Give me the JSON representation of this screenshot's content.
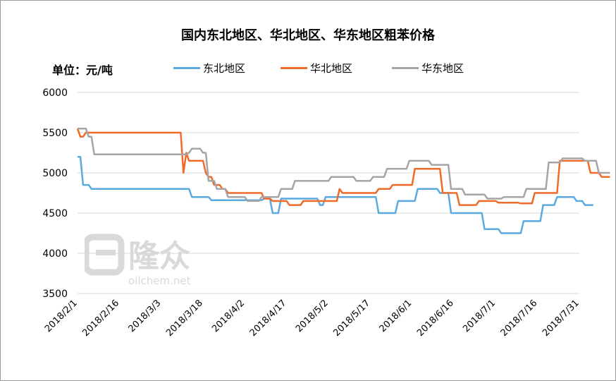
{
  "chart_data": {
    "type": "line",
    "title": "国内东北地区、华北地区、华东地区粗苯价格",
    "unit_label": "单位：元/吨",
    "ylim": [
      3500,
      6000
    ],
    "yticks": [
      3500,
      4000,
      4500,
      5000,
      5500,
      6000
    ],
    "x_tick_labels": [
      "2018/2/1",
      "2018/2/16",
      "2018/3/3",
      "2018/3/18",
      "2018/4/2",
      "2018/4/17",
      "2018/5/2",
      "2018/5/17",
      "2018/6/1",
      "2018/6/16",
      "2018/7/1",
      "2018/7/16",
      "2018/7/31"
    ],
    "x_start": "2018/2/1",
    "x_end": "2018/7/31",
    "grid": "horizontal",
    "legend_position": "top",
    "series": [
      {
        "name": "东北地区",
        "color": "#5aaae0",
        "points": [
          [
            0,
            5200
          ],
          [
            1,
            5200
          ],
          [
            2,
            4850
          ],
          [
            4,
            4850
          ],
          [
            5,
            4800
          ],
          [
            40,
            4800
          ],
          [
            41,
            4700
          ],
          [
            47,
            4700
          ],
          [
            48,
            4660
          ],
          [
            66,
            4660
          ],
          [
            67,
            4680
          ],
          [
            69,
            4680
          ],
          [
            70,
            4500
          ],
          [
            72,
            4500
          ],
          [
            73,
            4680
          ],
          [
            86,
            4680
          ],
          [
            87,
            4600
          ],
          [
            88,
            4600
          ],
          [
            89,
            4700
          ],
          [
            107,
            4700
          ],
          [
            108,
            4500
          ],
          [
            114,
            4500
          ],
          [
            115,
            4650
          ],
          [
            121,
            4650
          ],
          [
            122,
            4800
          ],
          [
            129,
            4800
          ],
          [
            130,
            4750
          ],
          [
            133,
            4750
          ],
          [
            134,
            4500
          ],
          [
            145,
            4500
          ],
          [
            146,
            4300
          ],
          [
            151,
            4300
          ],
          [
            152,
            4250
          ],
          [
            159,
            4250
          ],
          [
            160,
            4400
          ],
          [
            166,
            4400
          ],
          [
            167,
            4600
          ],
          [
            171,
            4600
          ],
          [
            172,
            4700
          ],
          [
            178,
            4700
          ],
          [
            179,
            4650
          ],
          [
            181,
            4650
          ],
          [
            182,
            4600
          ],
          [
            185,
            4600
          ]
        ]
      },
      {
        "name": "华北地区",
        "color": "#ee6b2a",
        "points": [
          [
            0,
            5550
          ],
          [
            1,
            5450
          ],
          [
            2,
            5450
          ],
          [
            3,
            5500
          ],
          [
            37,
            5500
          ],
          [
            38,
            5000
          ],
          [
            39,
            5250
          ],
          [
            40,
            5150
          ],
          [
            45,
            5150
          ],
          [
            46,
            5000
          ],
          [
            47,
            4950
          ],
          [
            48,
            4950
          ],
          [
            49,
            4850
          ],
          [
            51,
            4850
          ],
          [
            52,
            4800
          ],
          [
            53,
            4800
          ],
          [
            54,
            4750
          ],
          [
            66,
            4750
          ],
          [
            67,
            4680
          ],
          [
            69,
            4680
          ],
          [
            70,
            4650
          ],
          [
            75,
            4650
          ],
          [
            76,
            4600
          ],
          [
            80,
            4600
          ],
          [
            81,
            4650
          ],
          [
            93,
            4650
          ],
          [
            94,
            4800
          ],
          [
            95,
            4750
          ],
          [
            107,
            4750
          ],
          [
            108,
            4800
          ],
          [
            112,
            4800
          ],
          [
            113,
            4850
          ],
          [
            120,
            4850
          ],
          [
            121,
            5050
          ],
          [
            130,
            5050
          ],
          [
            131,
            4750
          ],
          [
            136,
            4750
          ],
          [
            137,
            4600
          ],
          [
            143,
            4600
          ],
          [
            144,
            4650
          ],
          [
            150,
            4650
          ],
          [
            151,
            4630
          ],
          [
            158,
            4630
          ],
          [
            159,
            4620
          ],
          [
            163,
            4620
          ],
          [
            164,
            4750
          ],
          [
            172,
            4750
          ],
          [
            173,
            5150
          ],
          [
            183,
            5150
          ],
          [
            184,
            5000
          ],
          [
            187,
            5000
          ],
          [
            188,
            4950
          ],
          [
            191,
            4950
          ]
        ]
      },
      {
        "name": "华东地区",
        "color": "#a5a5a5",
        "points": [
          [
            0,
            5550
          ],
          [
            3,
            5550
          ],
          [
            4,
            5450
          ],
          [
            5,
            5450
          ],
          [
            6,
            5230
          ],
          [
            39,
            5230
          ],
          [
            40,
            5250
          ],
          [
            41,
            5300
          ],
          [
            44,
            5300
          ],
          [
            45,
            5250
          ],
          [
            46,
            5250
          ],
          [
            47,
            4900
          ],
          [
            49,
            4900
          ],
          [
            50,
            4800
          ],
          [
            53,
            4800
          ],
          [
            54,
            4700
          ],
          [
            60,
            4700
          ],
          [
            61,
            4650
          ],
          [
            65,
            4650
          ],
          [
            66,
            4700
          ],
          [
            72,
            4700
          ],
          [
            73,
            4800
          ],
          [
            77,
            4800
          ],
          [
            78,
            4900
          ],
          [
            90,
            4900
          ],
          [
            91,
            4950
          ],
          [
            99,
            4950
          ],
          [
            100,
            4900
          ],
          [
            105,
            4900
          ],
          [
            106,
            4950
          ],
          [
            110,
            4950
          ],
          [
            111,
            5050
          ],
          [
            118,
            5050
          ],
          [
            119,
            5150
          ],
          [
            126,
            5150
          ],
          [
            127,
            5100
          ],
          [
            133,
            5100
          ],
          [
            134,
            4800
          ],
          [
            138,
            4800
          ],
          [
            139,
            4730
          ],
          [
            146,
            4730
          ],
          [
            147,
            4680
          ],
          [
            152,
            4680
          ],
          [
            153,
            4700
          ],
          [
            160,
            4700
          ],
          [
            161,
            4800
          ],
          [
            168,
            4800
          ],
          [
            169,
            5130
          ],
          [
            173,
            5130
          ],
          [
            174,
            5180
          ],
          [
            181,
            5180
          ],
          [
            182,
            5150
          ],
          [
            186,
            5150
          ],
          [
            187,
            5000
          ],
          [
            191,
            5000
          ]
        ]
      }
    ]
  },
  "watermark": {
    "brand": "隆众",
    "site": "oilchem.net"
  }
}
